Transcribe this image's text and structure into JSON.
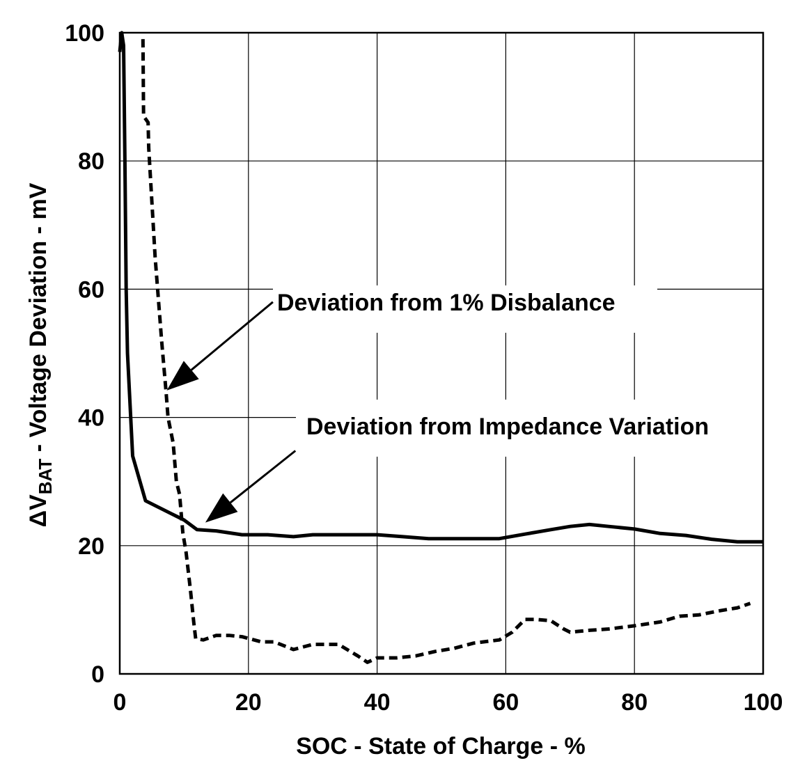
{
  "chart_data": {
    "type": "line",
    "title": "",
    "xlabel": "SOC - State of Charge - %",
    "ylabel": {
      "delta": "Δ",
      "main": "V",
      "subscript": "BAT",
      "rest": " - Voltage Deviation - mV"
    },
    "xlim": [
      0,
      100
    ],
    "ylim": [
      0,
      100
    ],
    "x_ticks": [
      0,
      20,
      40,
      60,
      80,
      100
    ],
    "y_ticks": [
      0,
      20,
      40,
      60,
      80,
      100
    ],
    "x_tick_labels": [
      "0",
      "20",
      "40",
      "60",
      "80",
      "100"
    ],
    "y_tick_labels": [
      "0",
      "20",
      "40",
      "60",
      "80",
      "100"
    ],
    "grid": true,
    "series": [
      {
        "style": "solid",
        "color": "#000000",
        "points": [
          [
            0,
            97
          ],
          [
            0.3,
            100
          ],
          [
            0.6,
            98
          ],
          [
            0.8,
            80
          ],
          [
            1.0,
            60
          ],
          [
            1.2,
            50
          ],
          [
            2.0,
            34
          ],
          [
            4.0,
            27
          ],
          [
            8.0,
            25
          ],
          [
            10.0,
            24
          ],
          [
            12.0,
            22.5
          ],
          [
            15.0,
            22.3
          ],
          [
            19.0,
            21.7
          ],
          [
            23.0,
            21.7
          ],
          [
            27.0,
            21.4
          ],
          [
            30.0,
            21.7
          ],
          [
            35.0,
            21.7
          ],
          [
            40.0,
            21.7
          ],
          [
            44.0,
            21.4
          ],
          [
            48.0,
            21.1
          ],
          [
            54.0,
            21.1
          ],
          [
            59.0,
            21.1
          ],
          [
            63.0,
            21.8
          ],
          [
            67.0,
            22.5
          ],
          [
            70.0,
            23.0
          ],
          [
            73.0,
            23.3
          ],
          [
            76.0,
            23.0
          ],
          [
            80.0,
            22.6
          ],
          [
            84.0,
            21.9
          ],
          [
            88.0,
            21.6
          ],
          [
            92.0,
            21.0
          ],
          [
            96.0,
            20.6
          ],
          [
            100.0,
            20.6
          ]
        ]
      },
      {
        "style": "dashed",
        "color": "#000000",
        "points": [
          [
            3.6,
            99
          ],
          [
            3.7,
            87
          ],
          [
            4.4,
            86
          ],
          [
            4.5,
            82
          ],
          [
            5.5,
            65
          ],
          [
            6.5,
            52
          ],
          [
            7.2,
            44
          ],
          [
            7.5,
            40
          ],
          [
            8.3,
            36
          ],
          [
            8.8,
            30
          ],
          [
            9.3,
            28
          ],
          [
            9.8,
            22
          ],
          [
            10.3,
            19
          ],
          [
            11.0,
            13
          ],
          [
            11.5,
            8
          ],
          [
            11.8,
            5.5
          ],
          [
            13.0,
            5.3
          ],
          [
            15.0,
            6.0
          ],
          [
            17.0,
            6.0
          ],
          [
            19.0,
            5.8
          ],
          [
            22.0,
            5.0
          ],
          [
            24.0,
            5.0
          ],
          [
            27.0,
            3.8
          ],
          [
            30.0,
            4.6
          ],
          [
            34.0,
            4.6
          ],
          [
            37.0,
            2.8
          ],
          [
            38.5,
            1.8
          ],
          [
            40.0,
            2.5
          ],
          [
            43.0,
            2.5
          ],
          [
            46.0,
            2.8
          ],
          [
            49.0,
            3.5
          ],
          [
            52.0,
            4.0
          ],
          [
            55.0,
            4.8
          ],
          [
            59.0,
            5.3
          ],
          [
            61.0,
            6.5
          ],
          [
            63.0,
            8.5
          ],
          [
            64.5,
            8.5
          ],
          [
            67.0,
            8.3
          ],
          [
            69.0,
            7.0
          ],
          [
            70.0,
            6.5
          ],
          [
            73.0,
            6.8
          ],
          [
            76.0,
            7.0
          ],
          [
            80.0,
            7.5
          ],
          [
            84.0,
            8.1
          ],
          [
            87.0,
            9.0
          ],
          [
            90.0,
            9.2
          ],
          [
            93.0,
            9.8
          ],
          [
            96.0,
            10.3
          ],
          [
            98.0,
            11.0
          ]
        ]
      }
    ],
    "annotations": [
      {
        "text": "Deviation from 1% Disbalance",
        "arrow_from": [
          23.8,
          58.0
        ],
        "arrow_to": [
          7.3,
          44.2
        ]
      },
      {
        "text": "Deviation from Impedance Variation",
        "arrow_from": [
          27.3,
          34.8
        ],
        "arrow_to": [
          13.3,
          23.6
        ]
      }
    ]
  }
}
